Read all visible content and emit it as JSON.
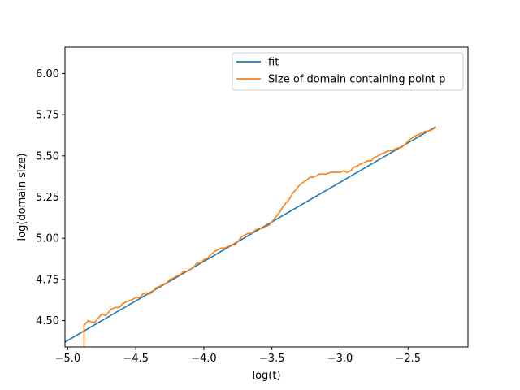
{
  "chart_data": {
    "type": "line",
    "title": "",
    "xlabel": "log(t)",
    "ylabel": "log(domain size)",
    "xlim": [
      -5.02,
      -2.06
    ],
    "ylim": [
      4.34,
      6.16
    ],
    "xticks": [
      -5.0,
      -4.5,
      -4.0,
      -3.5,
      -3.0,
      -2.5
    ],
    "xtick_labels": [
      "−5.0",
      "−4.5",
      "−4.0",
      "−3.5",
      "−3.0",
      "−2.5"
    ],
    "yticks": [
      4.5,
      4.75,
      5.0,
      5.25,
      5.5,
      5.75,
      6.0
    ],
    "ytick_labels": [
      "4.50",
      "4.75",
      "5.00",
      "5.25",
      "5.50",
      "5.75",
      "6.00"
    ],
    "grid": false,
    "legend_position": "top-right",
    "series": [
      {
        "name": "fit",
        "color": "#1f77b4",
        "x": [
          -5.02,
          -2.3
        ],
        "y": [
          4.37,
          5.675
        ]
      },
      {
        "name": "Size of domain containing point p",
        "color": "#ff7f0e",
        "x": [
          -4.88,
          -4.88,
          -4.87,
          -4.85,
          -4.82,
          -4.8,
          -4.78,
          -4.75,
          -4.72,
          -4.7,
          -4.68,
          -4.65,
          -4.62,
          -4.6,
          -4.58,
          -4.55,
          -4.52,
          -4.5,
          -4.47,
          -4.45,
          -4.42,
          -4.4,
          -4.37,
          -4.35,
          -4.32,
          -4.3,
          -4.27,
          -4.25,
          -4.22,
          -4.2,
          -4.17,
          -4.15,
          -4.12,
          -4.1,
          -4.07,
          -4.05,
          -4.02,
          -4.0,
          -3.97,
          -3.95,
          -3.92,
          -3.9,
          -3.87,
          -3.85,
          -3.82,
          -3.8,
          -3.77,
          -3.75,
          -3.72,
          -3.7,
          -3.67,
          -3.65,
          -3.62,
          -3.6,
          -3.57,
          -3.55,
          -3.52,
          -3.5,
          -3.47,
          -3.45,
          -3.42,
          -3.4,
          -3.37,
          -3.35,
          -3.32,
          -3.3,
          -3.27,
          -3.25,
          -3.22,
          -3.2,
          -3.17,
          -3.15,
          -3.12,
          -3.1,
          -3.07,
          -3.05,
          -3.02,
          -3.0,
          -2.97,
          -2.95,
          -2.92,
          -2.9,
          -2.87,
          -2.85,
          -2.82,
          -2.8,
          -2.77,
          -2.75,
          -2.72,
          -2.7,
          -2.67,
          -2.65,
          -2.62,
          -2.6,
          -2.57,
          -2.55,
          -2.52,
          -2.5,
          -2.47,
          -2.45,
          -2.42,
          -2.4,
          -2.37,
          -2.35,
          -2.32,
          -2.3
        ],
        "y": [
          4.34,
          4.47,
          4.48,
          4.5,
          4.49,
          4.49,
          4.51,
          4.54,
          4.53,
          4.55,
          4.57,
          4.58,
          4.58,
          4.6,
          4.61,
          4.62,
          4.63,
          4.64,
          4.64,
          4.66,
          4.67,
          4.66,
          4.68,
          4.7,
          4.71,
          4.72,
          4.73,
          4.75,
          4.76,
          4.77,
          4.78,
          4.8,
          4.8,
          4.81,
          4.83,
          4.85,
          4.85,
          4.87,
          4.88,
          4.9,
          4.92,
          4.93,
          4.94,
          4.94,
          4.95,
          4.96,
          4.96,
          4.98,
          5.01,
          5.02,
          5.03,
          5.03,
          5.05,
          5.06,
          5.06,
          5.07,
          5.08,
          5.1,
          5.13,
          5.15,
          5.19,
          5.21,
          5.24,
          5.27,
          5.3,
          5.32,
          5.34,
          5.35,
          5.37,
          5.37,
          5.38,
          5.39,
          5.39,
          5.39,
          5.4,
          5.4,
          5.4,
          5.4,
          5.41,
          5.4,
          5.41,
          5.43,
          5.44,
          5.45,
          5.46,
          5.47,
          5.47,
          5.49,
          5.5,
          5.51,
          5.52,
          5.53,
          5.53,
          5.54,
          5.55,
          5.55,
          5.57,
          5.59,
          5.61,
          5.62,
          5.63,
          5.64,
          5.65,
          5.65,
          5.66,
          5.67
        ]
      }
    ]
  }
}
